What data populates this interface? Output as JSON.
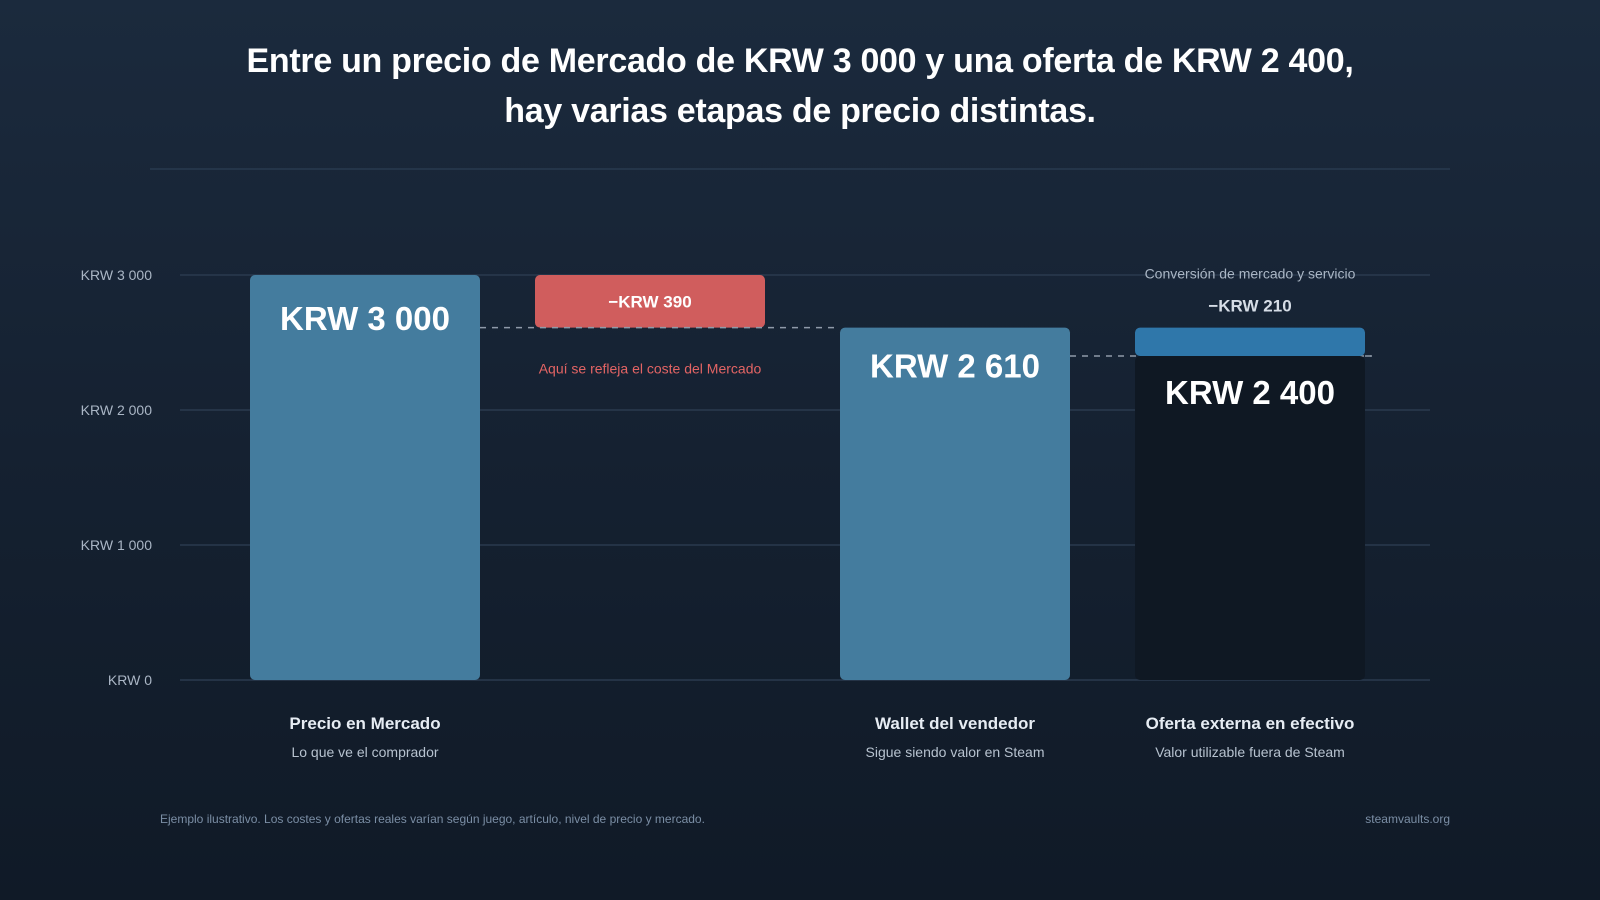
{
  "title": {
    "line1": "Entre un precio de Mercado de KRW 3 000 y una oferta de KRW 2 400,",
    "line2": "hay varias etapas de precio distintas."
  },
  "chart_data": {
    "type": "bar",
    "variant": "waterfall",
    "currency": "KRW",
    "ylim": [
      0,
      3000
    ],
    "yticks": [
      {
        "value": 0,
        "label": "KRW 0"
      },
      {
        "value": 1000,
        "label": "KRW 1 000"
      },
      {
        "value": 2000,
        "label": "KRW 2 000"
      },
      {
        "value": 3000,
        "label": "KRW 3 000"
      }
    ],
    "grid": true,
    "bars": [
      {
        "kind": "total",
        "value": 3000,
        "value_label": "KRW 3 000",
        "category": "Precio en Mercado",
        "sublabel": "Lo que ve el comprador",
        "color": "#447c9e"
      },
      {
        "kind": "decrease",
        "from": 3000,
        "to": 2610,
        "value": -390,
        "value_label": "−KRW 390",
        "annotation": "Aquí se refleja el coste del Mercado",
        "color": "#d05d5d"
      },
      {
        "kind": "total",
        "value": 2610,
        "value_label": "KRW 2 610",
        "category": "Wallet del vendedor",
        "sublabel": "Sigue siendo valor en Steam",
        "color": "#447c9e"
      },
      {
        "kind": "total",
        "value": 2400,
        "value_label": "KRW 2 400",
        "category": "Oferta externa en efectivo",
        "sublabel": "Valor utilizable fuera de Steam",
        "color": "#0f1823",
        "deduction": {
          "from": 2610,
          "to": 2400,
          "value": -210,
          "value_label": "−KRW 210",
          "caption": "Conversión de mercado y servicio",
          "color": "#2f77aa"
        }
      }
    ]
  },
  "colors": {
    "grid": "#2a3a4e",
    "axis_label": "#aab6c5",
    "category_label": "#e6ecf3",
    "sublabel": "#b7c2cf",
    "annotation": "#e36464",
    "caption": "#aab6c5",
    "dashed": "#8f9aa8"
  },
  "footer": {
    "note": "Ejemplo ilustrativo. Los costes y ofertas reales varían según juego, artículo, nivel de precio y mercado.",
    "site": "steamvaults.org"
  }
}
